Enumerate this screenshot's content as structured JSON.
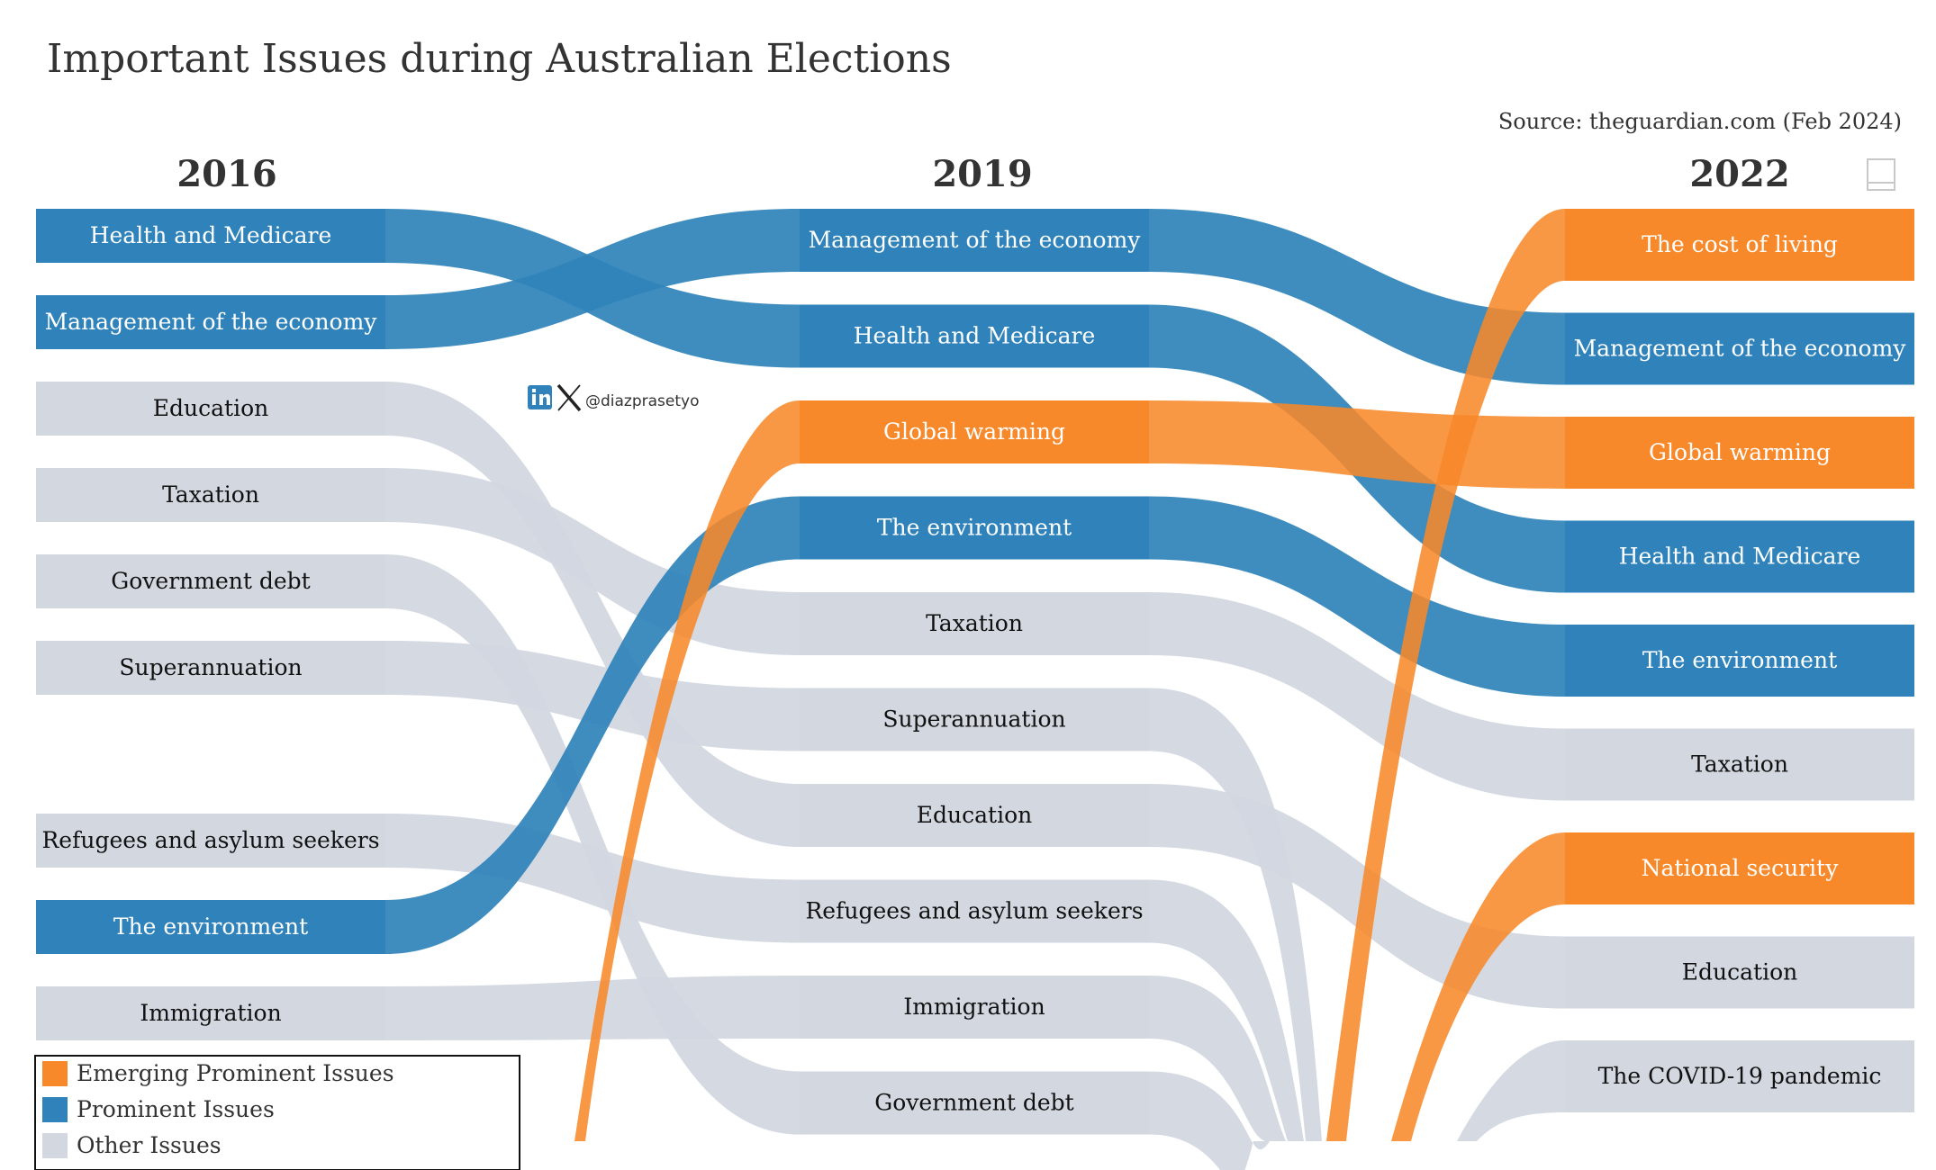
{
  "chart_data": {
    "type": "sankey",
    "title": "Important Issues during Australian Elections",
    "source": "Source: theguardian.com (Feb 2024)",
    "credit_handle": "@diazprasetyo",
    "colors": {
      "emerging": "#F7892A",
      "prominent": "#2F83BA",
      "other": "#D2D7E0"
    },
    "legend": [
      {
        "key": "emerging",
        "label": "Emerging Prominent Issues"
      },
      {
        "key": "prominent",
        "label": "Prominent Issues"
      },
      {
        "key": "other",
        "label": "Other Issues"
      }
    ],
    "years": [
      "2016",
      "2019",
      "2022"
    ],
    "columns": [
      {
        "year": "2016",
        "nodes": [
          {
            "label": "Health and Medicare",
            "category": "prominent",
            "rank": 1
          },
          {
            "label": "Management of the economy",
            "category": "prominent",
            "rank": 2
          },
          {
            "label": "Education",
            "category": "other",
            "rank": 3
          },
          {
            "label": "Taxation",
            "category": "other",
            "rank": 4
          },
          {
            "label": "Government debt",
            "category": "other",
            "rank": 5
          },
          {
            "label": "Superannuation",
            "category": "other",
            "rank": 6
          },
          {
            "label": "Refugees and asylum seekers",
            "category": "other",
            "rank": 8
          },
          {
            "label": "The environment",
            "category": "prominent",
            "rank": 9
          },
          {
            "label": "Immigration",
            "category": "other",
            "rank": 10
          }
        ]
      },
      {
        "year": "2019",
        "nodes": [
          {
            "label": "Management of the economy",
            "category": "prominent",
            "rank": 1
          },
          {
            "label": "Health and Medicare",
            "category": "prominent",
            "rank": 2
          },
          {
            "label": "Global warming",
            "category": "emerging",
            "rank": 3
          },
          {
            "label": "The environment",
            "category": "prominent",
            "rank": 4
          },
          {
            "label": "Taxation",
            "category": "other",
            "rank": 5
          },
          {
            "label": "Superannuation",
            "category": "other",
            "rank": 6
          },
          {
            "label": "Education",
            "category": "other",
            "rank": 7
          },
          {
            "label": "Refugees and asylum seekers",
            "category": "other",
            "rank": 8
          },
          {
            "label": "Immigration",
            "category": "other",
            "rank": 9
          },
          {
            "label": "Government debt",
            "category": "other",
            "rank": 10
          }
        ]
      },
      {
        "year": "2022",
        "nodes": [
          {
            "label": "The cost of living",
            "category": "emerging",
            "rank": 1
          },
          {
            "label": "Management of the economy",
            "category": "prominent",
            "rank": 2
          },
          {
            "label": "Global warming",
            "category": "emerging",
            "rank": 3
          },
          {
            "label": "Health and Medicare",
            "category": "prominent",
            "rank": 4
          },
          {
            "label": "The environment",
            "category": "prominent",
            "rank": 5
          },
          {
            "label": "Taxation",
            "category": "other",
            "rank": 6
          },
          {
            "label": "National security",
            "category": "emerging",
            "rank": 7
          },
          {
            "label": "Education",
            "category": "other",
            "rank": 8
          },
          {
            "label": "The COVID-19 pandemic",
            "category": "other",
            "rank": 9
          }
        ]
      }
    ],
    "links": [
      {
        "from": "2016",
        "to": "2019",
        "issue": "Health and Medicare",
        "from_rank": 1,
        "to_rank": 2,
        "category": "prominent"
      },
      {
        "from": "2016",
        "to": "2019",
        "issue": "Management of the economy",
        "from_rank": 2,
        "to_rank": 1,
        "category": "prominent"
      },
      {
        "from": "2016",
        "to": "2019",
        "issue": "Education",
        "from_rank": 3,
        "to_rank": 7,
        "category": "other"
      },
      {
        "from": "2016",
        "to": "2019",
        "issue": "Taxation",
        "from_rank": 4,
        "to_rank": 5,
        "category": "other"
      },
      {
        "from": "2016",
        "to": "2019",
        "issue": "Government debt",
        "from_rank": 5,
        "to_rank": 10,
        "category": "other"
      },
      {
        "from": "2016",
        "to": "2019",
        "issue": "Superannuation",
        "from_rank": 6,
        "to_rank": 6,
        "category": "other"
      },
      {
        "from": "2016",
        "to": "2019",
        "issue": "Refugees and asylum seekers",
        "from_rank": 8,
        "to_rank": 8,
        "category": "other"
      },
      {
        "from": "2016",
        "to": "2019",
        "issue": "The environment",
        "from_rank": 9,
        "to_rank": 4,
        "category": "prominent"
      },
      {
        "from": "2016",
        "to": "2019",
        "issue": "Immigration",
        "from_rank": 10,
        "to_rank": 9,
        "category": "other"
      },
      {
        "from": null,
        "to": "2019",
        "issue": "Global warming",
        "from_rank": null,
        "to_rank": 3,
        "category": "emerging"
      },
      {
        "from": "2019",
        "to": "2022",
        "issue": "Management of the economy",
        "from_rank": 1,
        "to_rank": 2,
        "category": "prominent"
      },
      {
        "from": "2019",
        "to": "2022",
        "issue": "Health and Medicare",
        "from_rank": 2,
        "to_rank": 4,
        "category": "prominent"
      },
      {
        "from": "2019",
        "to": "2022",
        "issue": "Global warming",
        "from_rank": 3,
        "to_rank": 3,
        "category": "emerging"
      },
      {
        "from": "2019",
        "to": "2022",
        "issue": "The environment",
        "from_rank": 4,
        "to_rank": 5,
        "category": "prominent"
      },
      {
        "from": "2019",
        "to": "2022",
        "issue": "Taxation",
        "from_rank": 5,
        "to_rank": 6,
        "category": "other"
      },
      {
        "from": "2019",
        "to": "2022",
        "issue": "Education",
        "from_rank": 7,
        "to_rank": 8,
        "category": "other"
      },
      {
        "from": "2019",
        "to": null,
        "issue": "Superannuation",
        "from_rank": 6,
        "to_rank": null,
        "category": "other"
      },
      {
        "from": "2019",
        "to": null,
        "issue": "Refugees and asylum seekers",
        "from_rank": 8,
        "to_rank": null,
        "category": "other"
      },
      {
        "from": "2019",
        "to": null,
        "issue": "Immigration",
        "from_rank": 9,
        "to_rank": null,
        "category": "other"
      },
      {
        "from": "2019",
        "to": null,
        "issue": "Government debt",
        "from_rank": 10,
        "to_rank": null,
        "category": "other"
      },
      {
        "from": null,
        "to": "2022",
        "issue": "The cost of living",
        "from_rank": null,
        "to_rank": 1,
        "category": "emerging"
      },
      {
        "from": null,
        "to": "2022",
        "issue": "National security",
        "from_rank": null,
        "to_rank": 7,
        "category": "emerging"
      },
      {
        "from": null,
        "to": "2022",
        "issue": "The COVID-19 pandemic",
        "from_rank": null,
        "to_rank": 9,
        "category": "other"
      }
    ]
  }
}
